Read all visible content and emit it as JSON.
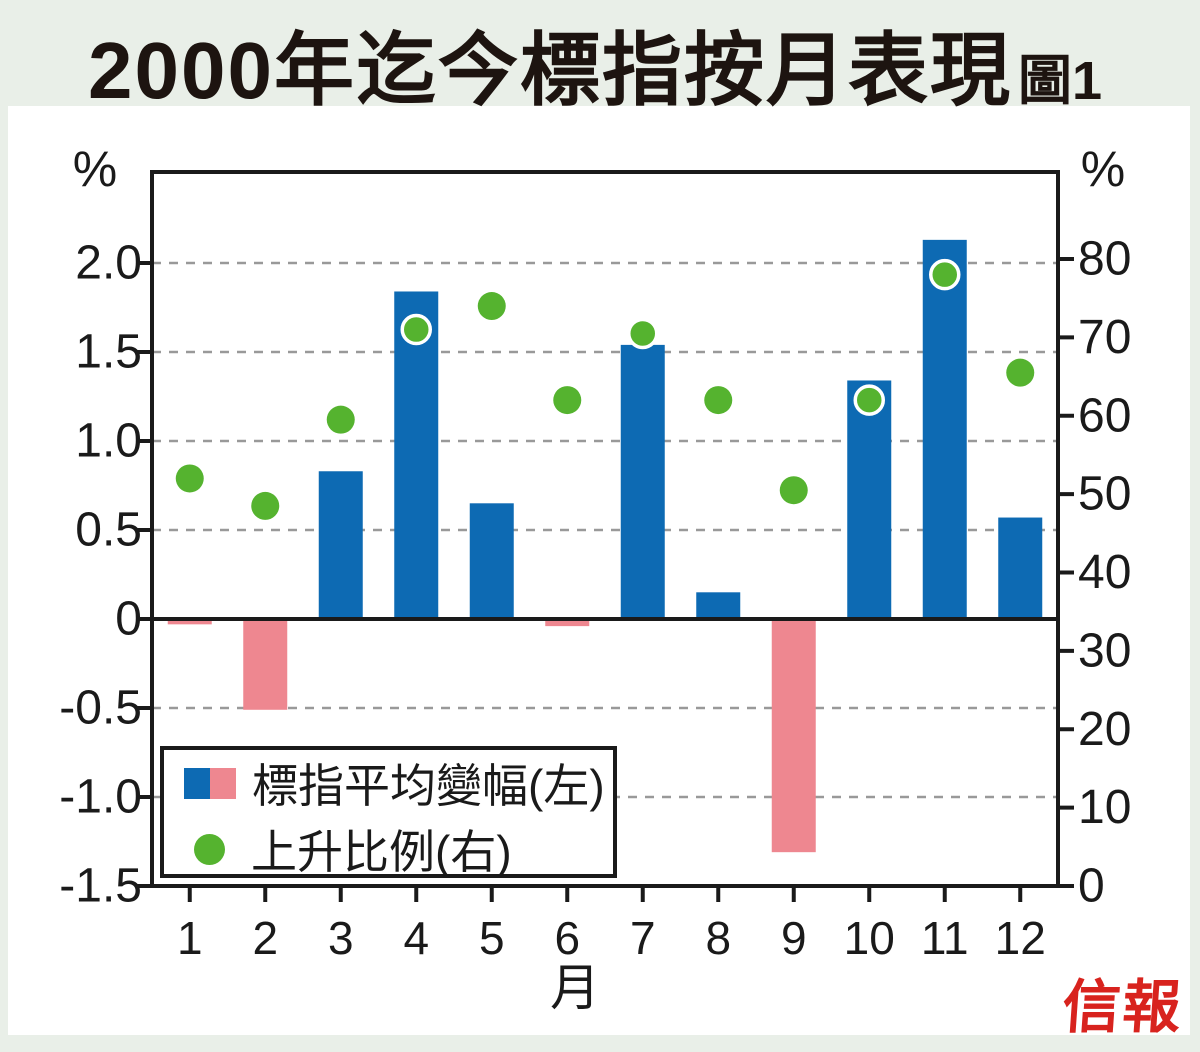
{
  "title": "2000年迄今標指按月表現",
  "figure_label": "圖1",
  "brand_logo": "信報",
  "axes": {
    "left_unit": "%",
    "right_unit": "%",
    "x_label": "月",
    "left_tick_values": [
      2.0,
      1.5,
      1.0,
      0.5,
      0,
      -0.5,
      -1.0,
      -1.5
    ],
    "left_tick_labels": [
      "2.0",
      "1.5",
      "1.0",
      "0.5",
      "0",
      "-0.5",
      "-1.0",
      "-1.5"
    ],
    "right_tick_values": [
      80,
      70,
      60,
      50,
      40,
      30,
      20,
      10,
      0
    ],
    "right_tick_labels": [
      "80",
      "70",
      "60",
      "50",
      "40",
      "30",
      "20",
      "10",
      "0"
    ]
  },
  "legend": {
    "items": [
      {
        "label": "標指平均變幅(左)",
        "swatch": "blue-pink-bar"
      },
      {
        "label": "上升比例(右)",
        "swatch": "green-dot"
      }
    ]
  },
  "chart_data": {
    "type": "bar",
    "title": "2000年迄今標指按月表現",
    "xlabel": "月",
    "categories": [
      "1",
      "2",
      "3",
      "4",
      "5",
      "6",
      "7",
      "8",
      "9",
      "10",
      "11",
      "12"
    ],
    "series": [
      {
        "name": "標指平均變幅(左)",
        "type": "bar",
        "axis": "left",
        "unit": "%",
        "values": [
          -0.03,
          -0.51,
          0.83,
          1.84,
          0.65,
          -0.04,
          1.54,
          0.15,
          -1.31,
          1.34,
          2.13,
          0.57
        ]
      },
      {
        "name": "上升比例(右)",
        "type": "scatter",
        "axis": "right",
        "unit": "%",
        "values": [
          52,
          48.5,
          59.5,
          71,
          74,
          62,
          70.5,
          62,
          50.5,
          62,
          78,
          65.5
        ]
      }
    ],
    "left_ylim": [
      -1.5,
      2.5
    ],
    "right_ylim": [
      0,
      91
    ],
    "grid": "dashed-horizontal-at-left-ticks"
  },
  "colors": {
    "positive_bar": "#0d6ab3",
    "negative_bar": "#ee8790",
    "dot": "#55b32f",
    "dot_ring": "#ffffff",
    "logo_red": "#d8231e",
    "background": "#e9efe8",
    "panel": "#ffffff",
    "grid": "#999999",
    "axis": "#1a1a1a",
    "text": "#1d1410"
  }
}
